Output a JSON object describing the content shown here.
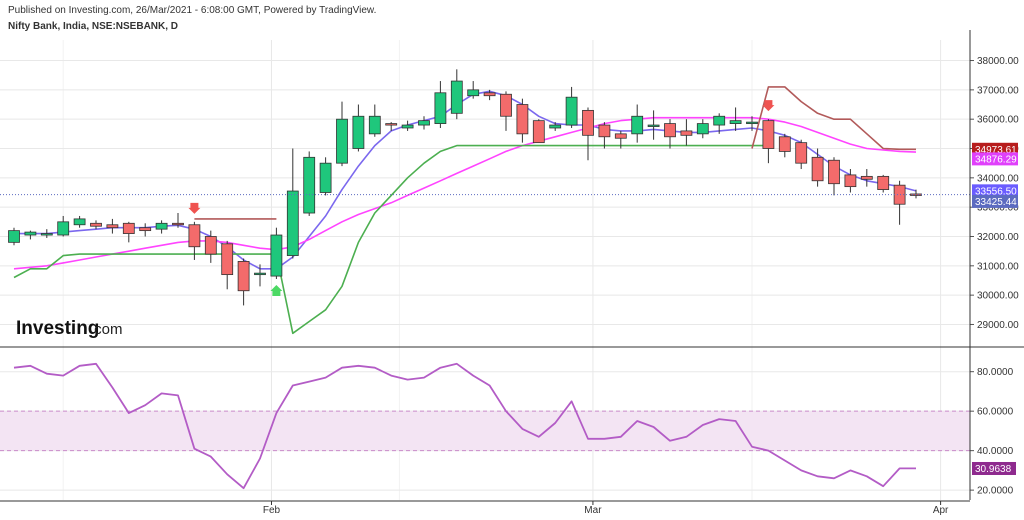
{
  "header": {
    "published": "Published on Investing.com, 26/Mar/2021 - 6:08:00 GMT, Powered by TradingView.",
    "symbol": "Nifty Bank, India, NSE:NSEBANK, D"
  },
  "watermark": {
    "text": "Investing",
    "suffix": ".com"
  },
  "colors": {
    "up": "#1fc77c",
    "down": "#f36b6b",
    "candle_border": "#333333",
    "ma_blue": "#7b68ee",
    "ma_magenta": "#ff44ff",
    "ma_green": "#4caf50",
    "ma_brown": "#b25a5a",
    "rsi": "#b35cc6",
    "rsi_band": "#f3e4f3",
    "grid": "#e8e8e8",
    "tag_red": "#b71c1c",
    "tag_magenta": "#e040fb",
    "tag_blue": "#6a5cff",
    "tag_steel": "#5c6bc0",
    "tag_rsi": "#8e2a8e"
  },
  "chart_data": [
    {
      "type": "candlestick",
      "title": "Nifty Bank, India, NSE:NSEBANK, D",
      "ylim": [
        28300,
        38700
      ],
      "y_ticks": [
        29000,
        30000,
        31000,
        32000,
        33000,
        34000,
        35000,
        36000,
        37000,
        38000
      ],
      "y_tick_labels": [
        "29000.00",
        "30000.00",
        "31000.00",
        "32000.00",
        "33000.00",
        "34000.00",
        "35000.00",
        "36000.00",
        "37000.00",
        "38000.00"
      ],
      "x_labels": [
        "Feb",
        "Mar",
        "Apr"
      ],
      "x_label_index": [
        15.7,
        35.3,
        56.5
      ],
      "last_price_line": 33425.44,
      "candles": [
        {
          "o": 31800,
          "h": 32300,
          "l": 31700,
          "c": 32200
        },
        {
          "o": 32050,
          "h": 32200,
          "l": 31900,
          "c": 32150
        },
        {
          "o": 32050,
          "h": 32250,
          "l": 31950,
          "c": 32100
        },
        {
          "o": 32050,
          "h": 32700,
          "l": 32000,
          "c": 32500
        },
        {
          "o": 32400,
          "h": 32700,
          "l": 32300,
          "c": 32600
        },
        {
          "o": 32450,
          "h": 32550,
          "l": 32250,
          "c": 32350
        },
        {
          "o": 32400,
          "h": 32600,
          "l": 32100,
          "c": 32300
        },
        {
          "o": 32450,
          "h": 32500,
          "l": 31800,
          "c": 32100
        },
        {
          "o": 32300,
          "h": 32450,
          "l": 32000,
          "c": 32200
        },
        {
          "o": 32250,
          "h": 32550,
          "l": 32100,
          "c": 32450
        },
        {
          "o": 32450,
          "h": 32800,
          "l": 32300,
          "c": 32400
        },
        {
          "o": 32400,
          "h": 32500,
          "l": 31200,
          "c": 31650
        },
        {
          "o": 32000,
          "h": 32200,
          "l": 31100,
          "c": 31400
        },
        {
          "o": 31750,
          "h": 31850,
          "l": 30200,
          "c": 30700
        },
        {
          "o": 31150,
          "h": 31250,
          "l": 29650,
          "c": 30150
        },
        {
          "o": 30750,
          "h": 31050,
          "l": 30300,
          "c": 30750
        },
        {
          "o": 30650,
          "h": 32300,
          "l": 30550,
          "c": 32050
        },
        {
          "o": 31350,
          "h": 35000,
          "l": 31250,
          "c": 33550
        },
        {
          "o": 32800,
          "h": 34900,
          "l": 32700,
          "c": 34700
        },
        {
          "o": 33500,
          "h": 34700,
          "l": 33400,
          "c": 34500
        },
        {
          "o": 34500,
          "h": 36600,
          "l": 34400,
          "c": 36000
        },
        {
          "o": 35000,
          "h": 36500,
          "l": 34900,
          "c": 36100
        },
        {
          "o": 35500,
          "h": 36500,
          "l": 35400,
          "c": 36100
        },
        {
          "o": 35850,
          "h": 35900,
          "l": 35600,
          "c": 35800
        },
        {
          "o": 35700,
          "h": 35950,
          "l": 35600,
          "c": 35800
        },
        {
          "o": 35800,
          "h": 36100,
          "l": 35650,
          "c": 35950
        },
        {
          "o": 35850,
          "h": 37300,
          "l": 35700,
          "c": 36900
        },
        {
          "o": 36200,
          "h": 37700,
          "l": 36000,
          "c": 37300
        },
        {
          "o": 36800,
          "h": 37300,
          "l": 36700,
          "c": 37000
        },
        {
          "o": 36900,
          "h": 37000,
          "l": 36650,
          "c": 36800
        },
        {
          "o": 36850,
          "h": 36950,
          "l": 35600,
          "c": 36100
        },
        {
          "o": 36500,
          "h": 36700,
          "l": 35200,
          "c": 35500
        },
        {
          "o": 35950,
          "h": 36000,
          "l": 35200,
          "c": 35200
        },
        {
          "o": 35700,
          "h": 35900,
          "l": 35600,
          "c": 35800
        },
        {
          "o": 35800,
          "h": 37100,
          "l": 35700,
          "c": 36750
        },
        {
          "o": 36300,
          "h": 36400,
          "l": 34600,
          "c": 35450
        },
        {
          "o": 35800,
          "h": 35900,
          "l": 35000,
          "c": 35400
        },
        {
          "o": 35500,
          "h": 35600,
          "l": 35000,
          "c": 35350
        },
        {
          "o": 35500,
          "h": 36500,
          "l": 35200,
          "c": 36100
        },
        {
          "o": 35750,
          "h": 36300,
          "l": 35300,
          "c": 35800
        },
        {
          "o": 35850,
          "h": 36000,
          "l": 35000,
          "c": 35400
        },
        {
          "o": 35600,
          "h": 36000,
          "l": 35100,
          "c": 35450
        },
        {
          "o": 35500,
          "h": 36000,
          "l": 35350,
          "c": 35850
        },
        {
          "o": 35800,
          "h": 36200,
          "l": 35500,
          "c": 36100
        },
        {
          "o": 35850,
          "h": 36400,
          "l": 35600,
          "c": 35950
        },
        {
          "o": 35900,
          "h": 36100,
          "l": 35600,
          "c": 35900
        },
        {
          "o": 35950,
          "h": 36000,
          "l": 34500,
          "c": 35000
        },
        {
          "o": 35400,
          "h": 35500,
          "l": 34700,
          "c": 34900
        },
        {
          "o": 35200,
          "h": 35300,
          "l": 34300,
          "c": 34500
        },
        {
          "o": 34700,
          "h": 35000,
          "l": 33700,
          "c": 33900
        },
        {
          "o": 34600,
          "h": 34700,
          "l": 33400,
          "c": 33800
        },
        {
          "o": 34100,
          "h": 34300,
          "l": 33500,
          "c": 33700
        },
        {
          "o": 34050,
          "h": 34300,
          "l": 33700,
          "c": 33950
        },
        {
          "o": 34050,
          "h": 34100,
          "l": 33500,
          "c": 33600
        },
        {
          "o": 33750,
          "h": 33900,
          "l": 32400,
          "c": 33100
        },
        {
          "o": 33450,
          "h": 33600,
          "l": 33300,
          "c": 33425
        }
      ],
      "series": [
        {
          "color_key": "ma_blue",
          "values": [
            32100,
            32100,
            32100,
            32150,
            32200,
            32250,
            32300,
            32300,
            32300,
            32350,
            32380,
            32250,
            32000,
            31650,
            31200,
            30900,
            30900,
            31300,
            32000,
            32700,
            33600,
            34400,
            35100,
            35600,
            35800,
            35950,
            36100,
            36500,
            36850,
            36950,
            36800,
            36500,
            36100,
            35850,
            35800,
            35800,
            35650,
            35600,
            35600,
            35650,
            35600,
            35550,
            35550,
            35600,
            35650,
            35700,
            35600,
            35450,
            35200,
            34800,
            34400,
            34100,
            33900,
            33800,
            33700,
            33556
          ]
        },
        {
          "color_key": "ma_magenta",
          "values": [
            30900,
            30950,
            31000,
            31100,
            31200,
            31300,
            31400,
            31500,
            31600,
            31700,
            31800,
            31850,
            31850,
            31800,
            31700,
            31600,
            31550,
            31650,
            31900,
            32200,
            32500,
            32750,
            32950,
            33150,
            33400,
            33650,
            33900,
            34150,
            34400,
            34650,
            34900,
            35100,
            35250,
            35400,
            35550,
            35700,
            35850,
            35950,
            36000,
            36050,
            36050,
            36050,
            36050,
            36050,
            36050,
            36050,
            36000,
            35900,
            35750,
            35550,
            35350,
            35150,
            35000,
            34950,
            34900,
            34876
          ]
        },
        {
          "color_key": "ma_green",
          "values": [
            30600,
            30900,
            30900,
            31350,
            31400,
            31400,
            31400,
            31400,
            31400,
            31400,
            31400,
            31400,
            31400,
            31400,
            31400,
            31400,
            31400,
            28700,
            29100,
            29500,
            30300,
            31800,
            32800,
            33400,
            34000,
            34500,
            34900,
            35100,
            35100,
            35100,
            35100,
            35100,
            35100,
            35100,
            35100,
            35100,
            35100,
            35100,
            35100,
            35100,
            35100,
            35100,
            35100,
            35100,
            35100,
            35100,
            35100,
            null,
            null,
            null,
            null,
            null,
            null,
            null,
            null,
            null
          ]
        },
        {
          "color_key": "ma_brown",
          "values": [
            null,
            null,
            null,
            null,
            null,
            null,
            null,
            null,
            null,
            null,
            null,
            32600,
            32600,
            32600,
            32600,
            32600,
            32600,
            null,
            null,
            null,
            null,
            null,
            null,
            null,
            null,
            null,
            null,
            null,
            null,
            null,
            null,
            null,
            null,
            null,
            null,
            null,
            null,
            null,
            null,
            null,
            null,
            null,
            null,
            null,
            null,
            35000,
            37100,
            37100,
            36600,
            36200,
            36000,
            36000,
            35500,
            35000,
            34973,
            34973
          ]
        }
      ],
      "signals": [
        {
          "index": 11,
          "direction": "down",
          "color": "#ef5350"
        },
        {
          "index": 16,
          "direction": "up",
          "color": "#4cd964"
        },
        {
          "index": 46,
          "direction": "down",
          "color": "#ef5350"
        }
      ],
      "price_tags": [
        {
          "label": "34973.61",
          "value": 34973.61,
          "color_key": "tag_red"
        },
        {
          "label": "34876.29",
          "value": 34876.29,
          "color_key": "tag_magenta"
        },
        {
          "label": "33556.50",
          "value": 33556.5,
          "color_key": "tag_blue"
        },
        {
          "label": "33425.44",
          "value": 33425.44,
          "color_key": "tag_steel"
        }
      ],
      "grid": true
    },
    {
      "type": "line",
      "ylim": [
        15,
        92
      ],
      "y_ticks": [
        20,
        40,
        60,
        80
      ],
      "y_tick_labels": [
        "20.0000",
        "40.0000",
        "60.0000",
        "80.0000"
      ],
      "band": [
        40,
        60
      ],
      "series": [
        {
          "color_key": "rsi",
          "values": [
            82,
            83,
            79,
            78,
            83,
            84,
            72,
            59,
            63,
            69,
            68,
            41,
            37,
            28,
            21,
            36,
            59,
            73,
            75,
            77,
            82,
            83,
            82,
            78,
            76,
            77,
            82,
            84,
            78,
            73,
            60,
            51,
            47,
            54,
            65,
            46,
            46,
            47,
            55,
            52,
            45,
            47,
            53,
            56,
            55,
            42,
            40,
            35,
            30,
            27,
            26,
            30,
            27,
            22,
            31,
            31
          ]
        }
      ],
      "price_tags": [
        {
          "label": "30.9638",
          "value": 30.9638,
          "color_key": "tag_rsi"
        }
      ],
      "grid": true
    }
  ]
}
